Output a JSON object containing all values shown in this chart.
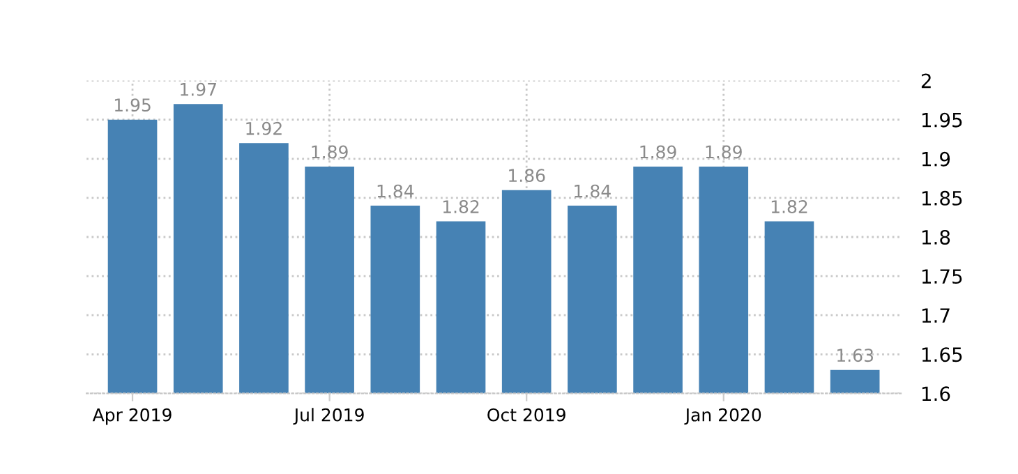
{
  "chart_data": {
    "type": "bar",
    "categories": [
      "Apr 2019",
      null,
      null,
      "Jul 2019",
      null,
      null,
      "Oct 2019",
      null,
      null,
      "Jan 2020",
      null,
      null
    ],
    "values": [
      1.95,
      1.97,
      1.92,
      1.89,
      1.84,
      1.82,
      1.86,
      1.84,
      1.89,
      1.89,
      1.82,
      1.63
    ],
    "color": "#4682b4",
    "ylim": [
      1.6,
      2
    ],
    "yticks": [
      {
        "value": 1.6,
        "label": "1.6"
      },
      {
        "value": 1.65,
        "label": "1.65"
      },
      {
        "value": 1.7,
        "label": "1.7"
      },
      {
        "value": 1.75,
        "label": "1.75"
      },
      {
        "value": 1.8,
        "label": "1.8"
      },
      {
        "value": 1.85,
        "label": "1.85"
      },
      {
        "value": 1.9,
        "label": "1.9"
      },
      {
        "value": 1.95,
        "label": "1.95"
      },
      2
    ],
    "data_labels": true,
    "grid": true,
    "legend": false
  }
}
